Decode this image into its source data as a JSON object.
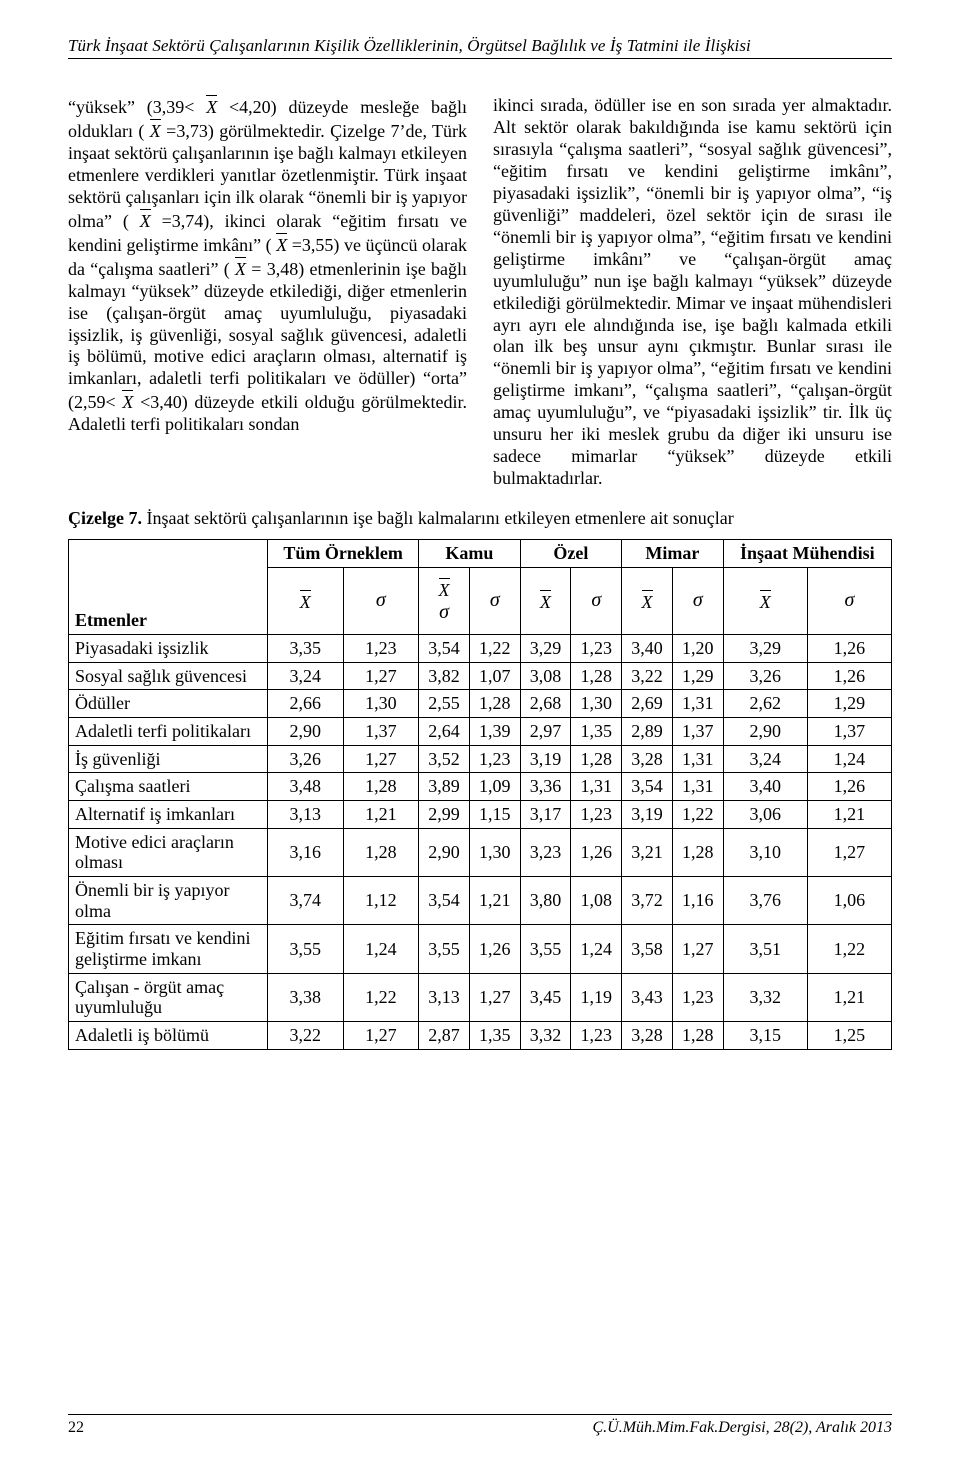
{
  "running_head": "Türk İnşaat Sektörü Çalışanlarının Kişilik Özelliklerinin, Örgütsel Bağlılık ve İş Tatmini ile İlişkisi",
  "left_pre": "“yüksek” (3,39< ",
  "left_mid1": " <4,20) düzeyde mesleğe bağlı oldukları ( ",
  "left_mid2": " =3,73) görülmektedir. Çizelge 7’de, Türk inşaat sektörü çalışanlarının işe bağlı kalmayı etkileyen etmenlere verdikleri yanıtlar özetlenmiştir. Türk inşaat sektörü çalışanları için ilk olarak “önemli bir iş yapıyor olma” ( ",
  "left_mid3": " =3,74), ikinci olarak “eğitim fırsatı ve kendini geliştirme imkânı”      ( ",
  "left_mid4": " =3,55) ve üçüncü olarak da “çalışma saatleri” ( ",
  "left_mid5": " = 3,48) etmenlerinin işe bağlı kalmayı “yüksek” düzeyde etkilediği, diğer etmenlerin ise (çalışan-örgüt amaç uyumluluğu, piyasadaki işsizlik, iş güvenliği, sosyal sağlık güvencesi, adaletli iş bölümü, motive edici araçların olması, alternatif iş imkanları, adaletli terfi politikaları ve ödüller) “orta” (2,59< ",
  "left_end": " <3,40) düzeyde etkili olduğu görülmektedir. Adaletli terfi politikaları sondan",
  "right_text": "ikinci sırada, ödüller ise en son sırada yer almaktadır. Alt sektör olarak bakıldığında ise kamu sektörü için sırasıyla “çalışma saatleri”, “sosyal sağlık güvencesi”, “eğitim fırsatı ve kendini geliştirme imkânı”, piyasadaki işsizlik”, “önemli bir iş yapıyor olma”, “iş güvenliği” maddeleri, özel sektör için de sırası ile “önemli bir iş yapıyor olma”, “eğitim fırsatı ve kendini geliştirme imkânı” ve “çalışan-örgüt amaç uyumluluğu” nun işe bağlı kalmayı “yüksek” düzeyde etkilediği görülmektedir. Mimar ve inşaat mühendisleri ayrı ayrı ele alındığında ise, işe bağlı kalmada etkili olan ilk beş unsur aynı çıkmıştır. Bunlar sırası ile “önemli bir iş yapıyor olma”, “eğitim fırsatı ve kendini geliştirme imkanı”, “çalışma saatleri”, “çalışan-örgüt amaç uyumluluğu”, ve “piyasadaki işsizlik” tir. İlk üç unsuru her iki meslek grubu da diğer iki unsuru ise sadece mimarlar “yüksek” düzeyde etkili bulmaktadırlar.",
  "caption_bold": "Çizelge 7.",
  "caption_rest": " İnşaat sektörü çalışanlarının işe bağlı kalmalarını etkileyen etmenlere ait sonuçlar",
  "table": {
    "groups": [
      "Tüm Örneklem",
      "Kamu",
      "Özel",
      "Mimar",
      "İnşaat Mühendisi"
    ],
    "corner": "Etmenler",
    "rows": [
      {
        "label": "Piyasadaki işsizlik",
        "v": [
          "3,35",
          "1,23",
          "3,54",
          "1,22",
          "3,29",
          "1,23",
          "3,40",
          "1,20",
          "3,29",
          "1,26"
        ]
      },
      {
        "label": "Sosyal sağlık güvencesi",
        "v": [
          "3,24",
          "1,27",
          "3,82",
          "1,07",
          "3,08",
          "1,28",
          "3,22",
          "1,29",
          "3,26",
          "1,26"
        ]
      },
      {
        "label": "Ödüller",
        "v": [
          "2,66",
          "1,30",
          "2,55",
          "1,28",
          "2,68",
          "1,30",
          "2,69",
          "1,31",
          "2,62",
          "1,29"
        ]
      },
      {
        "label": "Adaletli terfi politikaları",
        "v": [
          "2,90",
          "1,37",
          "2,64",
          "1,39",
          "2,97",
          "1,35",
          "2,89",
          "1,37",
          "2,90",
          "1,37"
        ]
      },
      {
        "label": "İş güvenliği",
        "v": [
          "3,26",
          "1,27",
          "3,52",
          "1,23",
          "3,19",
          "1,28",
          "3,28",
          "1,31",
          "3,24",
          "1,24"
        ]
      },
      {
        "label": "Çalışma saatleri",
        "v": [
          "3,48",
          "1,28",
          "3,89",
          "1,09",
          "3,36",
          "1,31",
          "3,54",
          "1,31",
          "3,40",
          "1,26"
        ]
      },
      {
        "label": "Alternatif iş imkanları",
        "v": [
          "3,13",
          "1,21",
          "2,99",
          "1,15",
          "3,17",
          "1,23",
          "3,19",
          "1,22",
          "3,06",
          "1,21"
        ]
      },
      {
        "label": "Motive edici araçların olması",
        "v": [
          "3,16",
          "1,28",
          "2,90",
          "1,30",
          "3,23",
          "1,26",
          "3,21",
          "1,28",
          "3,10",
          "1,27"
        ]
      },
      {
        "label": "Önemli bir iş yapıyor olma",
        "v": [
          "3,74",
          "1,12",
          "3,54",
          "1,21",
          "3,80",
          "1,08",
          "3,72",
          "1,16",
          "3,76",
          "1,06"
        ]
      },
      {
        "label": "Eğitim fırsatı ve kendini geliştirme imkanı",
        "v": [
          "3,55",
          "1,24",
          "3,55",
          "1,26",
          "3,55",
          "1,24",
          "3,58",
          "1,27",
          "3,51",
          "1,22"
        ]
      },
      {
        "label": "Çalışan - örgüt amaç uyumluluğu",
        "v": [
          "3,38",
          "1,22",
          "3,13",
          "1,27",
          "3,45",
          "1,19",
          "3,43",
          "1,23",
          "3,32",
          "1,21"
        ]
      },
      {
        "label": "Adaletli iş bölümü",
        "v": [
          "3,22",
          "1,27",
          "2,87",
          "1,35",
          "3,32",
          "1,23",
          "3,28",
          "1,28",
          "3,15",
          "1,25"
        ]
      }
    ],
    "colors": {
      "border": "#000000",
      "background": "#ffffff",
      "text": "#000000"
    },
    "fontsize_header": 18,
    "fontsize_body": 18
  },
  "footer": {
    "page": "22",
    "journal": "Ç.Ü.Müh.Mim.Fak.Dergisi, 28(2), Aralık 2013"
  }
}
